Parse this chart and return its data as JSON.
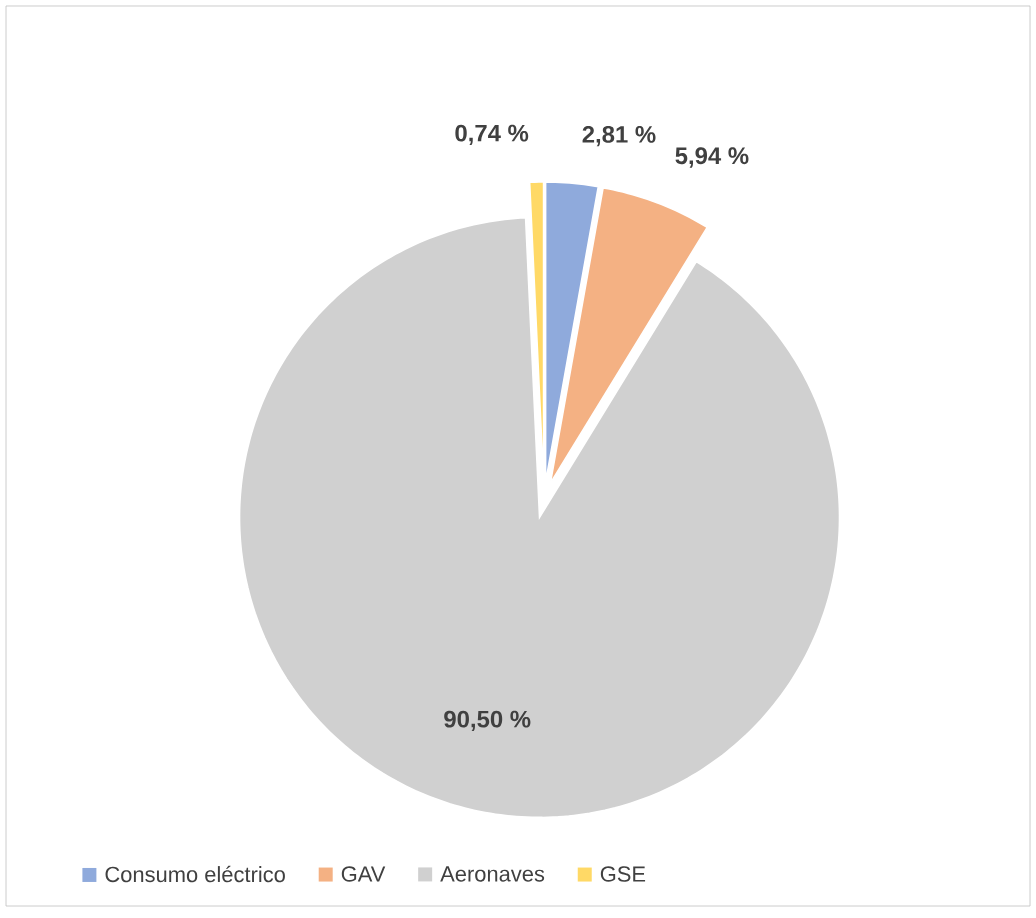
{
  "chart_data": {
    "type": "pie",
    "categories": [
      "Consumo eléctrico",
      "GAV",
      "Aeronaves",
      "GSE"
    ],
    "values": [
      2.81,
      5.94,
      90.5,
      0.74
    ],
    "colors": [
      "#8faadc",
      "#f4b183",
      "#d0d0d0",
      "#ffd966"
    ],
    "value_labels": [
      "2,81 %",
      "5,94 %",
      "90,50 %",
      "0,74 %"
    ],
    "legend": "bottom"
  }
}
